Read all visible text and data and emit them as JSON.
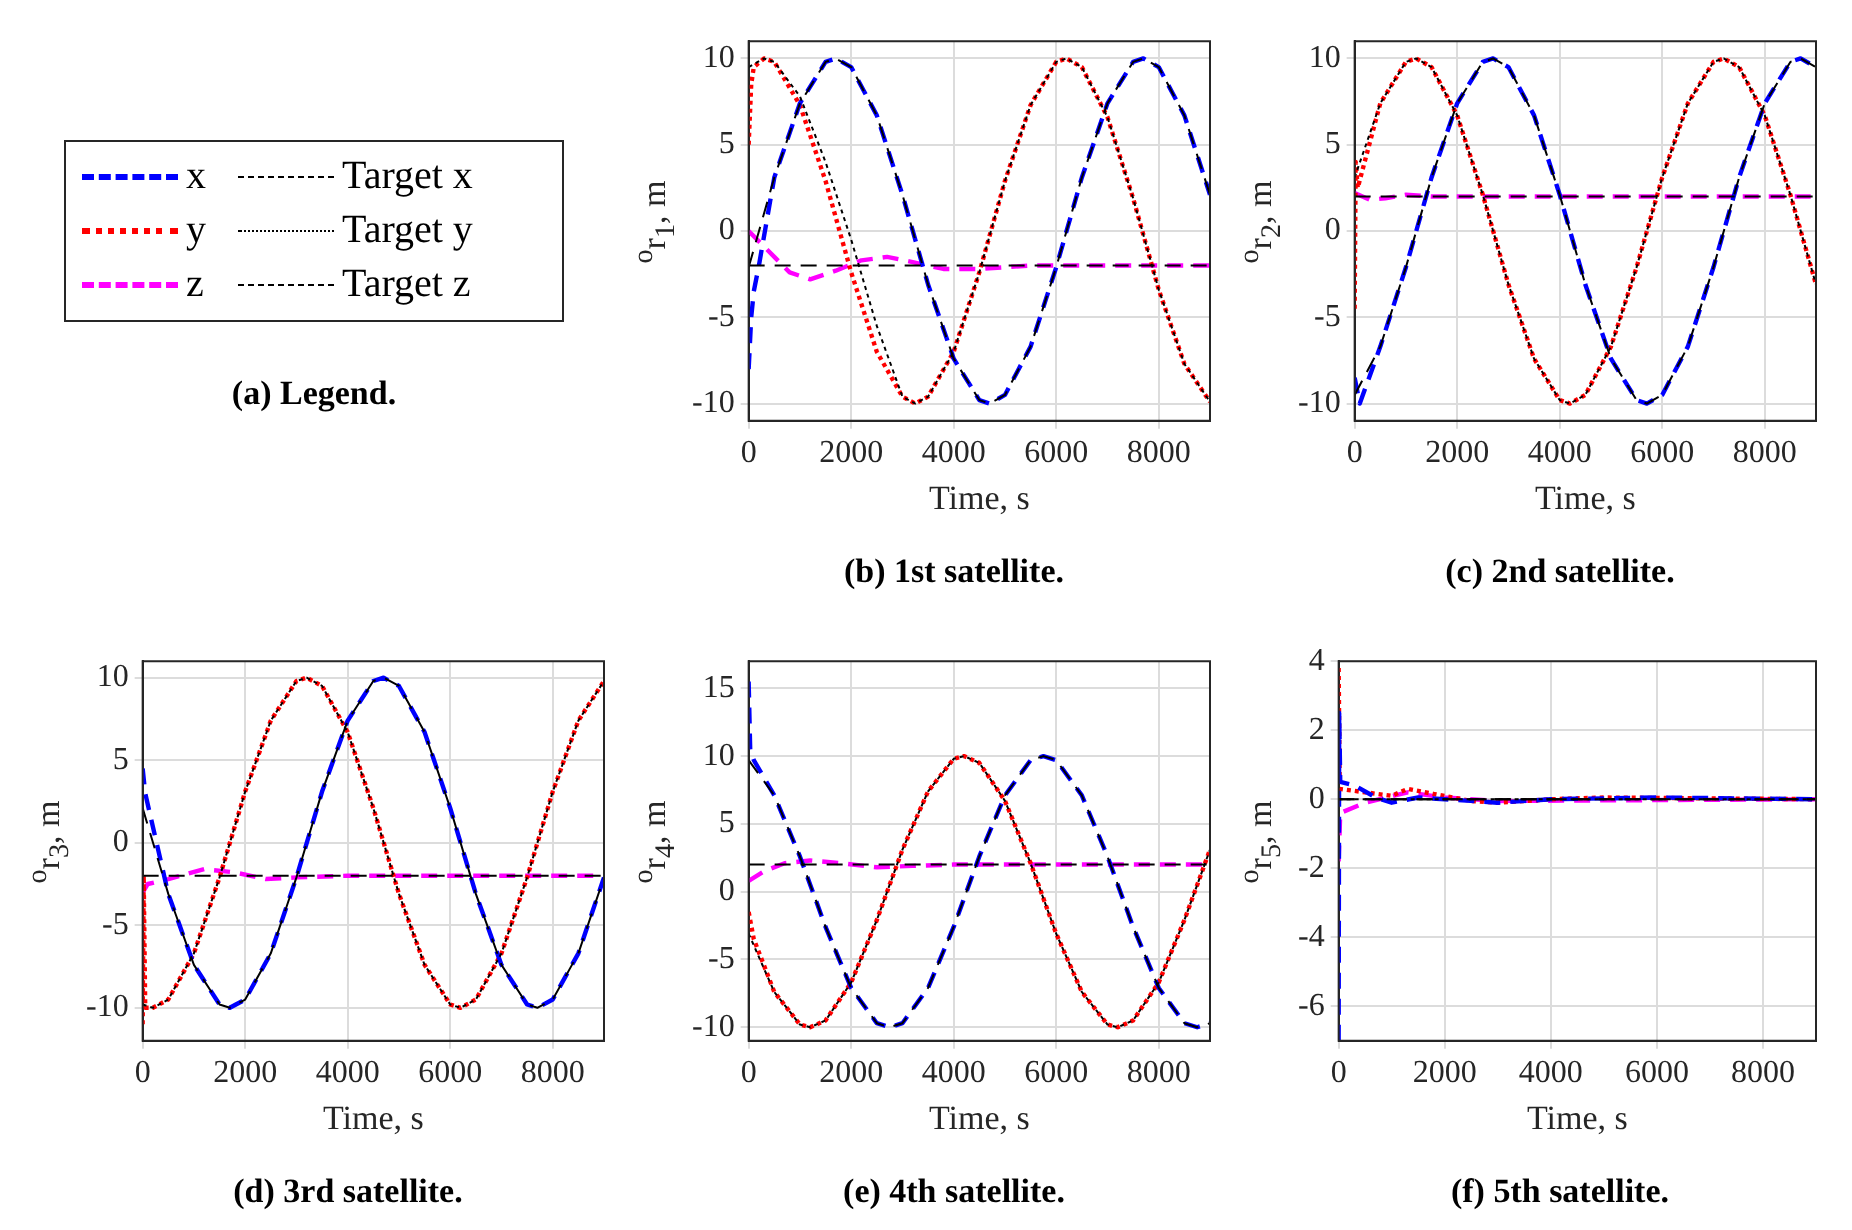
{
  "chart_data": [
    {
      "type": "line",
      "title": "(b) 1st satellite.",
      "legend_title": "(a) Legend.",
      "legend": "left",
      "xlabel": "Time, s",
      "ylabel": "$^{o}$r$_{1}$, m",
      "xlim": [
        0,
        9000
      ],
      "xticks": [
        0,
        2000,
        4000,
        6000,
        8000
      ],
      "ylim": [
        -11,
        11
      ],
      "yticks": [
        -10,
        -5,
        0,
        5,
        10
      ],
      "grid": true,
      "series": [
        {
          "name": "x",
          "color": "#0000ff",
          "line_style": "dashed",
          "x": [
            0,
            50,
            100,
            200,
            500,
            1000,
            1500,
            1700,
            2000,
            2500,
            3000,
            3500,
            4000,
            4500,
            4700,
            5000,
            5500,
            6000,
            6500,
            7000,
            7500,
            7700,
            8000,
            8500,
            9000
          ],
          "values": [
            -8,
            -5,
            -3.5,
            -2,
            3.1,
            7.4,
            9.8,
            10,
            9.5,
            6.7,
            2.1,
            -3.1,
            -7.4,
            -9.8,
            -10,
            -9.5,
            -6.7,
            -2.1,
            3.1,
            7.4,
            9.8,
            10,
            9.5,
            6.7,
            2.1
          ]
        },
        {
          "name": "y",
          "color": "#ff0000",
          "line_style": "dotted",
          "x": [
            0,
            50,
            100,
            300,
            500,
            1000,
            1500,
            2000,
            2500,
            3000,
            3250,
            3500,
            4000,
            4500,
            5000,
            5500,
            6000,
            6200,
            6500,
            7000,
            7500,
            8000,
            8500,
            9000
          ],
          "values": [
            5,
            8.5,
            9.5,
            10,
            9.8,
            7.3,
            2.9,
            -2.4,
            -7,
            -9.6,
            -10,
            -9.6,
            -7,
            -2.4,
            2.9,
            7.3,
            9.8,
            10,
            9.5,
            6.6,
            1.9,
            -3.4,
            -7.7,
            -9.9
          ]
        },
        {
          "name": "z",
          "color": "#ff00ff",
          "line_style": "dashed",
          "x": [
            0,
            200,
            500,
            800,
            1200,
            1700,
            2200,
            2700,
            3200,
            3800,
            4500,
            5500,
            7000,
            9000
          ],
          "values": [
            0,
            -0.6,
            -1.5,
            -2.4,
            -2.8,
            -2.3,
            -1.7,
            -1.5,
            -1.8,
            -2.2,
            -2.2,
            -2,
            -2,
            -2
          ]
        },
        {
          "name": "Target x",
          "color": "#000000",
          "line_style": "dashed",
          "x": [
            0,
            500,
            1000,
            1500,
            1700,
            2000,
            2500,
            3000,
            3500,
            4000,
            4500,
            4700,
            5000,
            5500,
            6000,
            6500,
            7000,
            7500,
            7700,
            8000,
            8500,
            9000
          ],
          "values": [
            -2.1,
            3.1,
            7.4,
            9.8,
            10,
            9.5,
            6.7,
            2.1,
            -3.1,
            -7.4,
            -9.8,
            -10,
            -9.5,
            -6.7,
            -2.1,
            3.1,
            7.4,
            9.8,
            10,
            9.5,
            6.7,
            2.1
          ]
        },
        {
          "name": "Target y",
          "color": "#000000",
          "line_style": "dotted",
          "x": [
            0,
            300,
            500,
            1000,
            1500,
            2000,
            2500,
            3000,
            3250,
            3500,
            4000,
            4500,
            5000,
            5500,
            6000,
            6200,
            6500,
            7000,
            7500,
            8000,
            8500,
            9000
          ],
          "values": [
            9.5,
            10,
            9.8,
            7.8,
            4,
            -0.5,
            -5.5,
            -9.6,
            -10,
            -9.6,
            -7,
            -2.4,
            2.9,
            7.3,
            9.8,
            10,
            9.5,
            6.6,
            1.9,
            -3.4,
            -7.7,
            -9.9
          ]
        },
        {
          "name": "Target z",
          "color": "#000000",
          "line_style": "dashed",
          "x": [
            0,
            9000
          ],
          "values": [
            -2,
            -2
          ]
        }
      ]
    },
    {
      "type": "line",
      "title": "(c) 2nd satellite.",
      "xlabel": "Time, s",
      "ylabel": "$^{o}$r$_{2}$, m",
      "xlim": [
        0,
        9000
      ],
      "xticks": [
        0,
        2000,
        4000,
        6000,
        8000
      ],
      "ylim": [
        -11,
        11
      ],
      "yticks": [
        -10,
        -5,
        0,
        5,
        10
      ],
      "grid": true,
      "series": [
        {
          "color": "#0000ff",
          "line_style": "dashed",
          "x": [
            0,
            100,
            500,
            1000,
            1500,
            2000,
            2500,
            2700,
            3000,
            3500,
            4000,
            4500,
            5000,
            5500,
            5700,
            6000,
            6500,
            7000,
            7500,
            8000,
            8500,
            8700,
            9000
          ],
          "values": [
            -8.5,
            -10,
            -6.7,
            -2.1,
            3.1,
            7.4,
            9.8,
            10,
            9.5,
            6.7,
            2.1,
            -3.1,
            -7.4,
            -9.8,
            -10,
            -9.5,
            -6.7,
            -2.1,
            3.1,
            7.4,
            9.8,
            10,
            9.5
          ]
        },
        {
          "color": "#ff0000",
          "line_style": "dotted",
          "x": [
            0,
            20,
            60,
            500,
            1000,
            1200,
            1500,
            2000,
            2500,
            3000,
            3500,
            4000,
            4200,
            4500,
            5000,
            5500,
            6000,
            6500,
            7000,
            7200,
            7500,
            8000,
            8500,
            9000
          ],
          "values": [
            -4.5,
            4,
            2.5,
            7.4,
            9.8,
            10,
            9.5,
            6.7,
            2.1,
            -3.1,
            -7.4,
            -9.8,
            -10,
            -9.5,
            -6.7,
            -2.1,
            3.1,
            7.4,
            9.8,
            10,
            9.5,
            6.7,
            2.1,
            -3.1
          ]
        },
        {
          "color": "#ff00ff",
          "line_style": "dashed",
          "x": [
            0,
            300,
            600,
            1000,
            1500,
            9000
          ],
          "values": [
            2.2,
            1.8,
            1.9,
            2.1,
            2,
            2
          ]
        },
        {
          "color": "#000000",
          "line_style": "dashed",
          "x": [
            0,
            500,
            1000,
            1500,
            2000,
            2500,
            2700,
            3000,
            3500,
            4000,
            4500,
            5000,
            5500,
            5700,
            6000,
            6500,
            7000,
            7500,
            8000,
            8500,
            8700,
            9000
          ],
          "values": [
            -9.5,
            -6.7,
            -2.1,
            3.1,
            7.4,
            9.8,
            10,
            9.5,
            6.7,
            2.1,
            -3.1,
            -7.4,
            -9.8,
            -10,
            -9.5,
            -6.7,
            -2.1,
            3.1,
            7.4,
            9.8,
            10,
            9.5
          ]
        },
        {
          "color": "#000000",
          "line_style": "dotted",
          "x": [
            0,
            500,
            1000,
            1200,
            1500,
            2000,
            2500,
            3000,
            3500,
            4000,
            4200,
            4500,
            5000,
            5500,
            6000,
            6500,
            7000,
            7200,
            7500,
            8000,
            8500,
            9000
          ],
          "values": [
            3.1,
            7.4,
            9.8,
            10,
            9.5,
            6.7,
            2.1,
            -3.1,
            -7.4,
            -9.8,
            -10,
            -9.5,
            -6.7,
            -2.1,
            3.1,
            7.4,
            9.8,
            10,
            9.5,
            6.7,
            2.1,
            -3.1
          ]
        },
        {
          "color": "#000000",
          "line_style": "dashed",
          "x": [
            0,
            9000
          ],
          "values": [
            2,
            2
          ]
        }
      ]
    },
    {
      "type": "line",
      "title": "(d) 3rd satellite.",
      "xlabel": "Time, s",
      "ylabel": "$^{o}$r$_{3}$, m",
      "xlim": [
        0,
        9000
      ],
      "xticks": [
        0,
        2000,
        4000,
        6000,
        8000
      ],
      "ylim": [
        -12,
        11
      ],
      "yticks": [
        -10,
        -5,
        0,
        5,
        10
      ],
      "grid": true,
      "series": [
        {
          "color": "#0000ff",
          "line_style": "dashed",
          "x": [
            0,
            50,
            500,
            1000,
            1500,
            1700,
            2000,
            2500,
            3000,
            3500,
            4000,
            4500,
            4700,
            5000,
            5500,
            6000,
            6500,
            7000,
            7500,
            7700,
            8000,
            8500,
            9000
          ],
          "values": [
            4.5,
            3,
            -3.1,
            -7.4,
            -9.8,
            -10,
            -9.5,
            -6.7,
            -2.1,
            3.1,
            7.4,
            9.8,
            10,
            9.5,
            6.7,
            2.1,
            -3.1,
            -7.4,
            -9.8,
            -10,
            -9.5,
            -6.7,
            -2.1
          ]
        },
        {
          "color": "#ff0000",
          "line_style": "dotted",
          "x": [
            0,
            20,
            50,
            200,
            500,
            1000,
            1500,
            2000,
            2500,
            3000,
            3200,
            3500,
            4000,
            4500,
            5000,
            5500,
            6000,
            6200,
            6500,
            7000,
            7500,
            8000,
            8500,
            9000
          ],
          "values": [
            -11,
            -2,
            -10,
            -10,
            -9.5,
            -6.7,
            -2.1,
            3.1,
            7.4,
            9.8,
            10,
            9.5,
            6.7,
            2.1,
            -3.1,
            -7.4,
            -9.8,
            -10,
            -9.5,
            -6.7,
            -2.1,
            3.1,
            7.4,
            9.8
          ]
        },
        {
          "color": "#ff00ff",
          "line_style": "dashed",
          "x": [
            0,
            100,
            500,
            1200,
            1800,
            2400,
            3000,
            4000,
            9000
          ],
          "values": [
            -3,
            -2.5,
            -2.2,
            -1.6,
            -1.8,
            -2.2,
            -2.1,
            -2,
            -2
          ]
        },
        {
          "color": "#000000",
          "line_style": "dashed",
          "x": [
            0,
            500,
            1000,
            1500,
            1700,
            2000,
            2500,
            3000,
            3500,
            4000,
            4500,
            4700,
            5000,
            5500,
            6000,
            6500,
            7000,
            7500,
            7700,
            8000,
            8500,
            9000
          ],
          "values": [
            2.1,
            -3.1,
            -7.4,
            -9.8,
            -10,
            -9.5,
            -6.7,
            -2.1,
            3.1,
            7.4,
            9.8,
            10,
            9.5,
            6.7,
            2.1,
            -3.1,
            -7.4,
            -9.8,
            -10,
            -9.5,
            -6.7,
            -2.1
          ]
        },
        {
          "color": "#000000",
          "line_style": "dotted",
          "x": [
            0,
            200,
            500,
            1000,
            1500,
            2000,
            2500,
            3000,
            3200,
            3500,
            4000,
            4500,
            5000,
            5500,
            6000,
            6200,
            6500,
            7000,
            7500,
            8000,
            8500,
            9000
          ],
          "values": [
            -9.8,
            -10,
            -9.5,
            -6.7,
            -2.1,
            3.1,
            7.4,
            9.8,
            10,
            9.5,
            6.7,
            2.1,
            -3.1,
            -7.4,
            -9.8,
            -10,
            -9.5,
            -6.7,
            -2.1,
            3.1,
            7.4,
            9.8
          ]
        },
        {
          "color": "#000000",
          "line_style": "dashed",
          "x": [
            0,
            9000
          ],
          "values": [
            -2,
            -2
          ]
        }
      ]
    },
    {
      "type": "line",
      "title": "(e) 4th satellite.",
      "xlabel": "Time, s",
      "ylabel": "$^{o}$r$_{4}$, m",
      "xlim": [
        0,
        9000
      ],
      "xticks": [
        0,
        2000,
        4000,
        6000,
        8000
      ],
      "ylim": [
        -11,
        17
      ],
      "yticks": [
        -10,
        -5,
        0,
        5,
        10,
        15
      ],
      "grid": true,
      "series": [
        {
          "color": "#0000ff",
          "line_style": "dashed",
          "x": [
            0,
            30,
            100,
            500,
            1000,
            1500,
            2000,
            2500,
            2750,
            3000,
            3500,
            4000,
            4500,
            5000,
            5500,
            5750,
            6000,
            6500,
            7000,
            7500,
            8000,
            8500,
            8750,
            9000
          ],
          "values": [
            15.5,
            10.5,
            9.7,
            7.1,
            2.6,
            -2.6,
            -7.1,
            -9.7,
            -10,
            -9.7,
            -7.1,
            -2.6,
            2.6,
            7.1,
            9.7,
            10,
            9.7,
            7.1,
            2.6,
            -2.6,
            -7.1,
            -9.7,
            -10,
            -9.7
          ]
        },
        {
          "color": "#ff0000",
          "line_style": "dotted",
          "x": [
            0,
            100,
            500,
            1000,
            1200,
            1500,
            2000,
            2500,
            3000,
            3500,
            4000,
            4200,
            4500,
            5000,
            5500,
            6000,
            6500,
            7000,
            7200,
            7500,
            8000,
            8500,
            9000
          ],
          "values": [
            -1.5,
            -3.5,
            -7.4,
            -9.8,
            -10,
            -9.5,
            -6.7,
            -2.1,
            3.1,
            7.4,
            9.8,
            10,
            9.5,
            6.7,
            2.1,
            -3.1,
            -7.4,
            -9.8,
            -10,
            -9.5,
            -6.7,
            -2.1,
            3.1
          ]
        },
        {
          "color": "#ff00ff",
          "line_style": "dashed",
          "x": [
            0,
            300,
            700,
            1200,
            1800,
            2500,
            3200,
            4000,
            9000
          ],
          "values": [
            0.8,
            1.5,
            2.1,
            2.3,
            2.1,
            1.8,
            1.9,
            2,
            2
          ]
        },
        {
          "color": "#000000",
          "line_style": "dashed",
          "x": [
            0,
            500,
            1000,
            1500,
            2000,
            2500,
            2750,
            3000,
            3500,
            4000,
            4500,
            5000,
            5500,
            5750,
            6000,
            6500,
            7000,
            7500,
            8000,
            8500,
            8750,
            9000
          ],
          "values": [
            9.7,
            7.1,
            2.6,
            -2.6,
            -7.1,
            -9.7,
            -10,
            -9.7,
            -7.1,
            -2.6,
            2.6,
            7.1,
            9.7,
            10,
            9.7,
            7.1,
            2.6,
            -2.6,
            -7.1,
            -9.7,
            -10,
            -9.7
          ]
        },
        {
          "color": "#000000",
          "line_style": "dotted",
          "x": [
            0,
            500,
            1000,
            1200,
            1500,
            2000,
            2500,
            3000,
            3500,
            4000,
            4200,
            4500,
            5000,
            5500,
            6000,
            6500,
            7000,
            7200,
            7500,
            8000,
            8500,
            9000
          ],
          "values": [
            -3.1,
            -7.4,
            -9.8,
            -10,
            -9.5,
            -6.7,
            -2.1,
            3.1,
            7.4,
            9.8,
            10,
            9.5,
            6.7,
            2.1,
            -3.1,
            -7.4,
            -9.8,
            -10,
            -9.5,
            -6.7,
            -2.1,
            3.1
          ]
        },
        {
          "color": "#000000",
          "line_style": "dashed",
          "x": [
            0,
            9000
          ],
          "values": [
            2,
            2
          ]
        }
      ]
    },
    {
      "type": "line",
      "title": "(f) 5th satellite.",
      "xlabel": "Time, s",
      "ylabel": "$^{o}$r$_{5}$, m",
      "xlim": [
        0,
        9000
      ],
      "xticks": [
        0,
        2000,
        4000,
        6000,
        8000
      ],
      "ylim": [
        -7,
        4
      ],
      "yticks": [
        -6,
        -4,
        -2,
        0,
        2,
        4
      ],
      "grid": true,
      "series": [
        {
          "color": "#0000ff",
          "line_style": "dashed",
          "x": [
            0,
            10,
            30,
            300,
            700,
            1000,
            1500,
            2000,
            3000,
            4000,
            6000,
            9000
          ],
          "values": [
            -7,
            2.5,
            0.5,
            0.4,
            0.05,
            -0.1,
            0.05,
            0,
            -0.1,
            0,
            0.05,
            0
          ]
        },
        {
          "color": "#ff0000",
          "line_style": "dotted",
          "x": [
            0,
            20,
            500,
            1000,
            1300,
            1800,
            2500,
            3000,
            4000,
            5000,
            9000
          ],
          "values": [
            3.8,
            0.3,
            0.2,
            0.1,
            0.3,
            0.15,
            -0.05,
            -0.1,
            0,
            0.05,
            0
          ]
        },
        {
          "color": "#ff00ff",
          "line_style": "dashed",
          "x": [
            0,
            30,
            500,
            1300,
            2000,
            3000,
            9000
          ],
          "values": [
            -1.8,
            -0.4,
            -0.1,
            0.2,
            0.05,
            -0.05,
            0
          ]
        },
        {
          "color": "#000000",
          "line_style": "dashed",
          "x": [
            0,
            9000
          ],
          "values": [
            0,
            0
          ]
        },
        {
          "color": "#000000",
          "line_style": "dotted",
          "x": [
            0,
            9000
          ],
          "values": [
            0,
            0
          ]
        },
        {
          "color": "#000000",
          "line_style": "dashed",
          "x": [
            0,
            9000
          ],
          "values": [
            0,
            0
          ]
        }
      ]
    }
  ]
}
